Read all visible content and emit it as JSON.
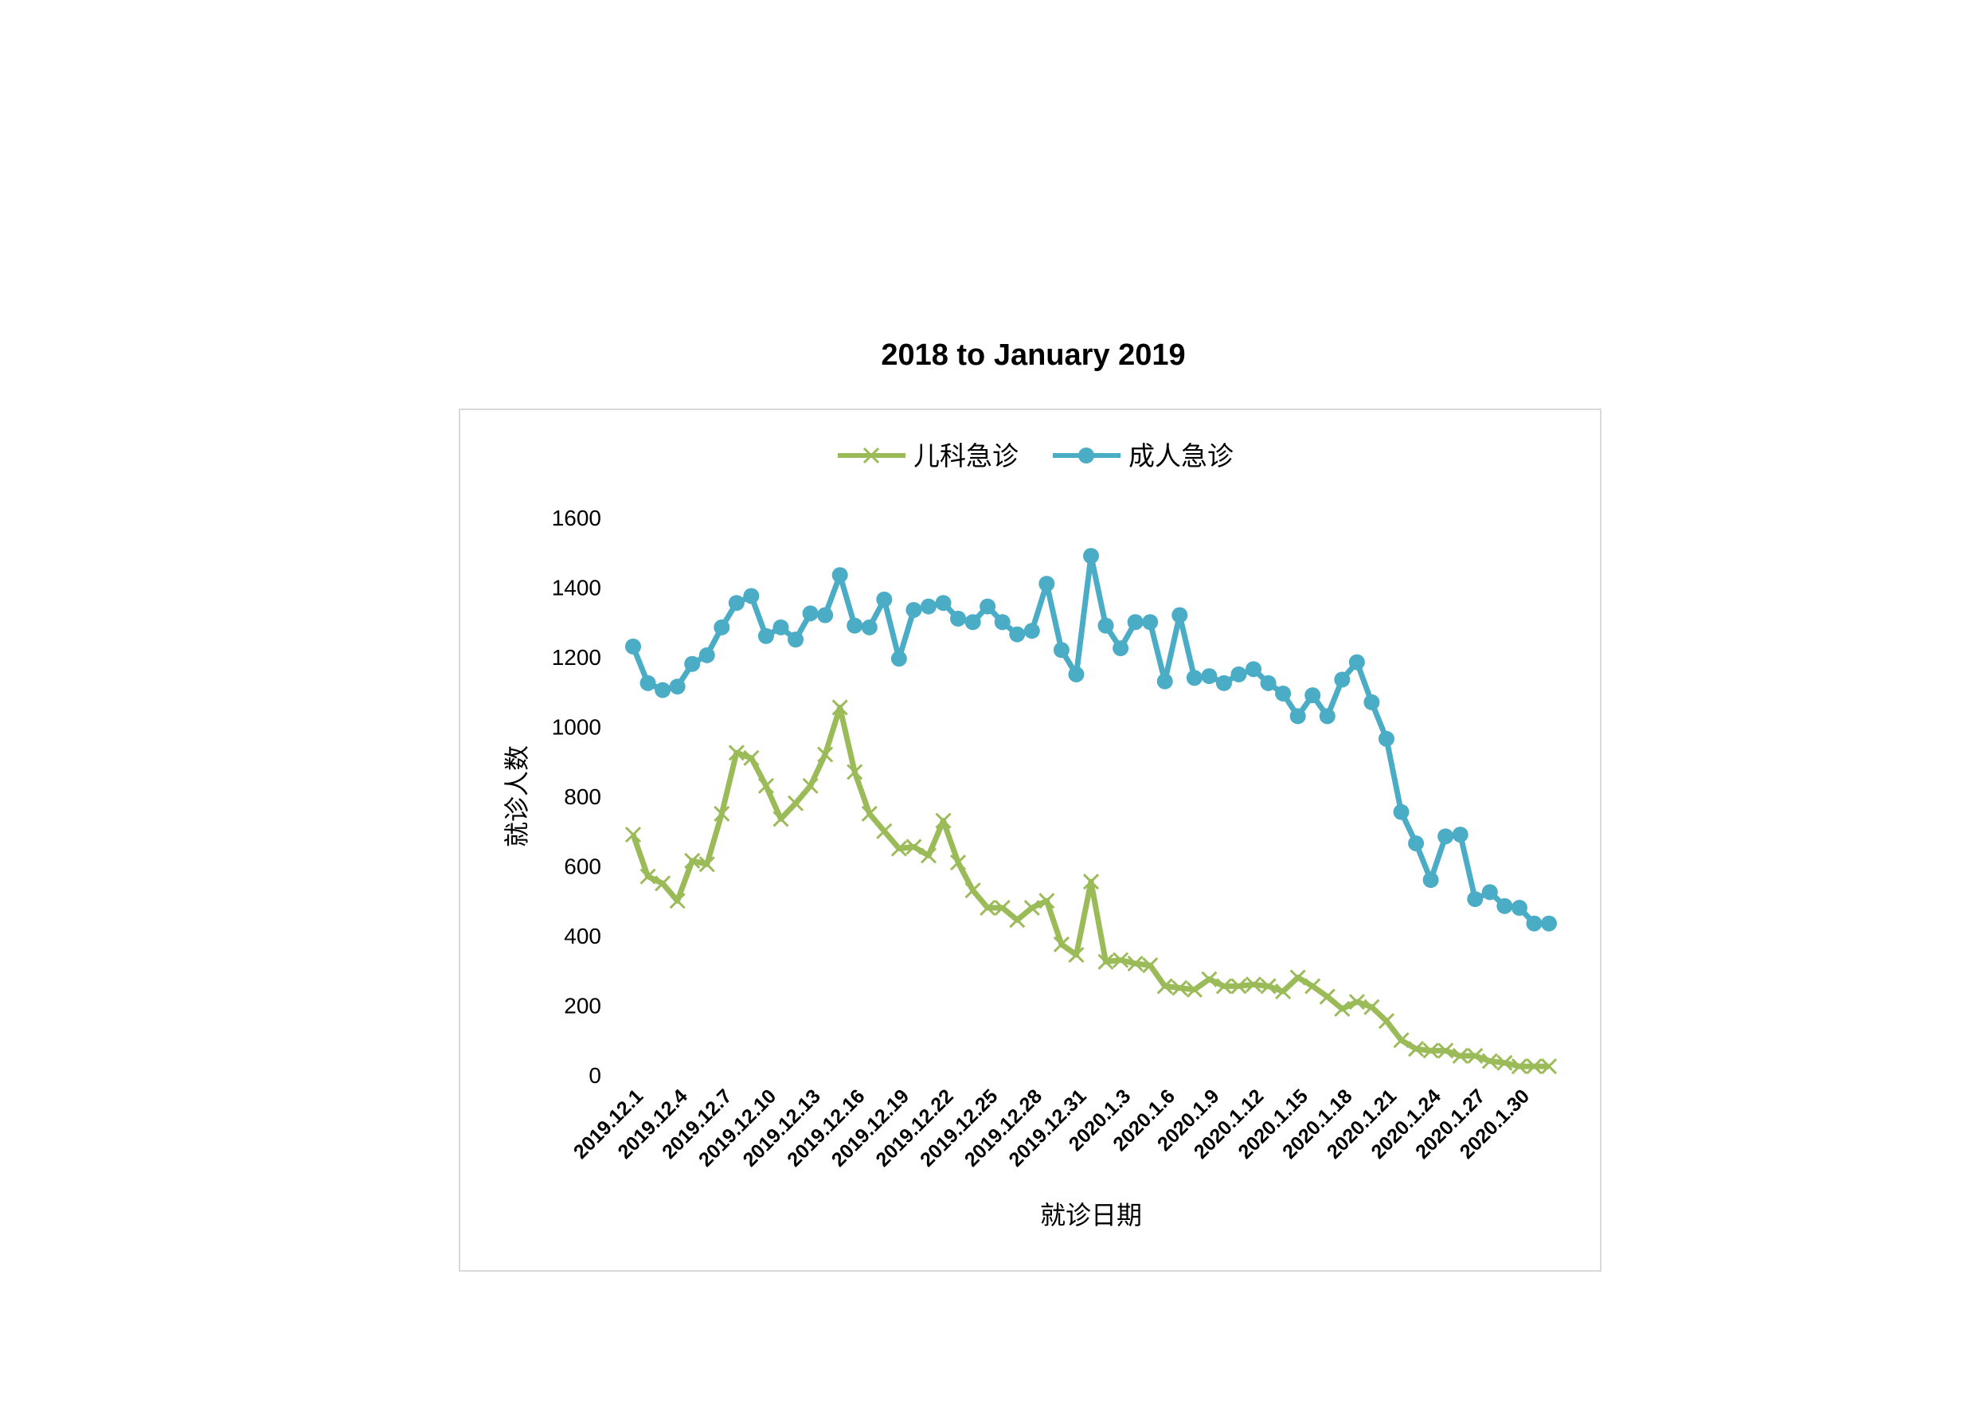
{
  "chart_data": {
    "type": "line",
    "title": "2018 to January 2019",
    "xlabel": "就诊日期",
    "ylabel": "就诊人数",
    "ylim": [
      0,
      1600
    ],
    "yticks": [
      0,
      200,
      400,
      600,
      800,
      1000,
      1200,
      1400,
      1600
    ],
    "legend_position": "top-center",
    "categories": [
      "2019.12.1",
      "2019.12.2",
      "2019.12.3",
      "2019.12.4",
      "2019.12.5",
      "2019.12.6",
      "2019.12.7",
      "2019.12.8",
      "2019.12.9",
      "2019.12.10",
      "2019.12.11",
      "2019.12.12",
      "2019.12.13",
      "2019.12.14",
      "2019.12.15",
      "2019.12.16",
      "2019.12.17",
      "2019.12.18",
      "2019.12.19",
      "2019.12.20",
      "2019.12.21",
      "2019.12.22",
      "2019.12.23",
      "2019.12.24",
      "2019.12.25",
      "2019.12.26",
      "2019.12.27",
      "2019.12.28",
      "2019.12.29",
      "2019.12.30",
      "2019.12.31",
      "2020.1.1",
      "2020.1.2",
      "2020.1.3",
      "2020.1.4",
      "2020.1.5",
      "2020.1.6",
      "2020.1.7",
      "2020.1.8",
      "2020.1.9",
      "2020.1.10",
      "2020.1.11",
      "2020.1.12",
      "2020.1.13",
      "2020.1.14",
      "2020.1.15",
      "2020.1.16",
      "2020.1.17",
      "2020.1.18",
      "2020.1.19",
      "2020.1.20",
      "2020.1.21",
      "2020.1.22",
      "2020.1.23",
      "2020.1.24",
      "2020.1.25",
      "2020.1.26",
      "2020.1.27",
      "2020.1.28",
      "2020.1.29",
      "2020.1.30",
      "2020.1.31",
      "2020.2.1"
    ],
    "tick_labels": [
      "2019.12.1",
      "2019.12.4",
      "2019.12.7",
      "2019.12.10",
      "2019.12.13",
      "2019.12.16",
      "2019.12.19",
      "2019.12.22",
      "2019.12.25",
      "2019.12.28",
      "2019.12.31",
      "2020.1.3",
      "2020.1.6",
      "2020.1.9",
      "2020.1.12",
      "2020.1.15",
      "2020.1.18",
      "2020.1.21",
      "2020.1.24",
      "2020.1.27",
      "2020.1.30"
    ],
    "series": [
      {
        "name": "儿科急诊",
        "color": "#9bbb59",
        "marker": "x",
        "values": [
          690,
          570,
          550,
          500,
          615,
          605,
          750,
          925,
          910,
          830,
          735,
          780,
          830,
          920,
          1055,
          870,
          750,
          700,
          650,
          655,
          630,
          730,
          610,
          530,
          480,
          480,
          445,
          480,
          500,
          375,
          345,
          555,
          325,
          330,
          320,
          315,
          255,
          250,
          245,
          275,
          255,
          255,
          260,
          255,
          240,
          280,
          255,
          225,
          190,
          210,
          195,
          155,
          100,
          75,
          70,
          70,
          55,
          55,
          40,
          35,
          25,
          25,
          25
        ]
      },
      {
        "name": "成人急诊",
        "color": "#4bacc6",
        "marker": "circle",
        "values": [
          1230,
          1125,
          1105,
          1115,
          1180,
          1205,
          1285,
          1355,
          1375,
          1260,
          1285,
          1250,
          1325,
          1320,
          1435,
          1290,
          1285,
          1365,
          1195,
          1335,
          1345,
          1355,
          1310,
          1300,
          1345,
          1300,
          1265,
          1275,
          1410,
          1220,
          1150,
          1490,
          1290,
          1225,
          1300,
          1300,
          1130,
          1320,
          1140,
          1145,
          1125,
          1150,
          1165,
          1125,
          1095,
          1030,
          1090,
          1030,
          1135,
          1185,
          1070,
          965,
          755,
          665,
          560,
          685,
          690,
          505,
          525,
          485,
          480,
          435,
          435
        ]
      }
    ]
  }
}
